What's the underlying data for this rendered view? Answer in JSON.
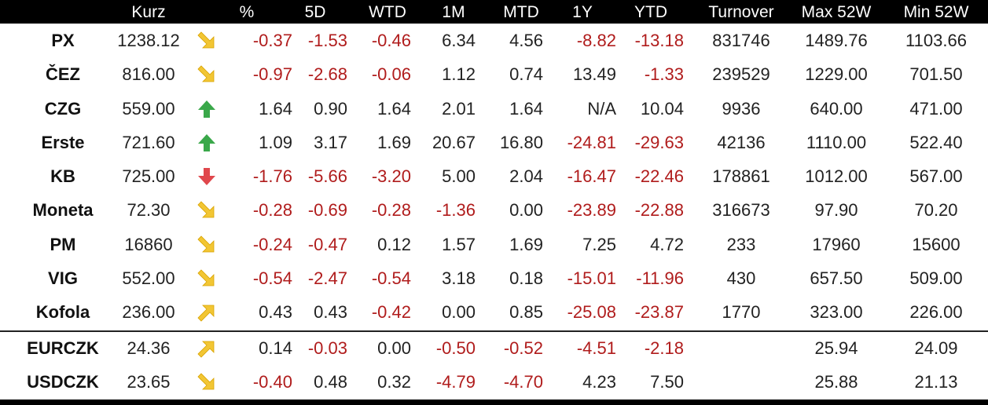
{
  "headers": [
    "Kurz",
    "%",
    "5D",
    "WTD",
    "1M",
    "MTD",
    "1Y",
    "YTD",
    "Turnover",
    "Max 52W",
    "Min 52W"
  ],
  "colors": {
    "negative": "#b01c1c",
    "up": "#3aa84a",
    "down": "#e0474c",
    "flat": "#f2c634"
  },
  "rows": [
    {
      "name": "PX",
      "kurz": "1238.12",
      "icon": "arrow-down-right-icon",
      "pct": "-0.37",
      "d5": "-1.53",
      "wtd": "-0.46",
      "m1": "6.34",
      "mtd": "4.56",
      "y1": "-8.82",
      "ytd": "-13.18",
      "turnover": "831746",
      "max52": "1489.76",
      "min52": "1103.66"
    },
    {
      "name": "ČEZ",
      "kurz": "816.00",
      "icon": "arrow-down-right-icon",
      "pct": "-0.97",
      "d5": "-2.68",
      "wtd": "-0.06",
      "m1": "1.12",
      "mtd": "0.74",
      "y1": "13.49",
      "ytd": "-1.33",
      "turnover": "239529",
      "max52": "1229.00",
      "min52": "701.50"
    },
    {
      "name": "CZG",
      "kurz": "559.00",
      "icon": "arrow-up-icon",
      "pct": "1.64",
      "d5": "0.90",
      "wtd": "1.64",
      "m1": "2.01",
      "mtd": "1.64",
      "y1": "N/A",
      "ytd": "10.04",
      "turnover": "9936",
      "max52": "640.00",
      "min52": "471.00"
    },
    {
      "name": "Erste",
      "kurz": "721.60",
      "icon": "arrow-up-icon",
      "pct": "1.09",
      "d5": "3.17",
      "wtd": "1.69",
      "m1": "20.67",
      "mtd": "16.80",
      "y1": "-24.81",
      "ytd": "-29.63",
      "turnover": "42136",
      "max52": "1110.00",
      "min52": "522.40"
    },
    {
      "name": "KB",
      "kurz": "725.00",
      "icon": "arrow-down-icon",
      "pct": "-1.76",
      "d5": "-5.66",
      "wtd": "-3.20",
      "m1": "5.00",
      "mtd": "2.04",
      "y1": "-16.47",
      "ytd": "-22.46",
      "turnover": "178861",
      "max52": "1012.00",
      "min52": "567.00"
    },
    {
      "name": "Moneta",
      "kurz": "72.30",
      "icon": "arrow-down-right-icon",
      "pct": "-0.28",
      "d5": "-0.69",
      "wtd": "-0.28",
      "m1": "-1.36",
      "mtd": "0.00",
      "y1": "-23.89",
      "ytd": "-22.88",
      "turnover": "316673",
      "max52": "97.90",
      "min52": "70.20"
    },
    {
      "name": "PM",
      "kurz": "16860",
      "icon": "arrow-down-right-icon",
      "pct": "-0.24",
      "d5": "-0.47",
      "wtd": "0.12",
      "m1": "1.57",
      "mtd": "1.69",
      "y1": "7.25",
      "ytd": "4.72",
      "turnover": "233",
      "max52": "17960",
      "min52": "15600"
    },
    {
      "name": "VIG",
      "kurz": "552.00",
      "icon": "arrow-down-right-icon",
      "pct": "-0.54",
      "d5": "-2.47",
      "wtd": "-0.54",
      "m1": "3.18",
      "mtd": "0.18",
      "y1": "-15.01",
      "ytd": "-11.96",
      "turnover": "430",
      "max52": "657.50",
      "min52": "509.00"
    },
    {
      "name": "Kofola",
      "kurz": "236.00",
      "icon": "arrow-up-right-icon",
      "pct": "0.43",
      "d5": "0.43",
      "wtd": "-0.42",
      "m1": "0.00",
      "mtd": "0.85",
      "y1": "-25.08",
      "ytd": "-23.87",
      "turnover": "1770",
      "max52": "323.00",
      "min52": "226.00"
    },
    {
      "name": "EURCZK",
      "kurz": "24.36",
      "icon": "arrow-up-right-icon",
      "pct": "0.14",
      "d5": "-0.03",
      "wtd": "0.00",
      "m1": "-0.50",
      "mtd": "-0.52",
      "y1": "-4.51",
      "ytd": "-2.18",
      "turnover": "",
      "max52": "25.94",
      "min52": "24.09"
    },
    {
      "name": "USDCZK",
      "kurz": "23.65",
      "icon": "arrow-down-right-icon",
      "pct": "-0.40",
      "d5": "0.48",
      "wtd": "0.32",
      "m1": "-4.79",
      "mtd": "-4.70",
      "y1": "4.23",
      "ytd": "7.50",
      "turnover": "",
      "max52": "25.88",
      "min52": "21.13"
    }
  ]
}
